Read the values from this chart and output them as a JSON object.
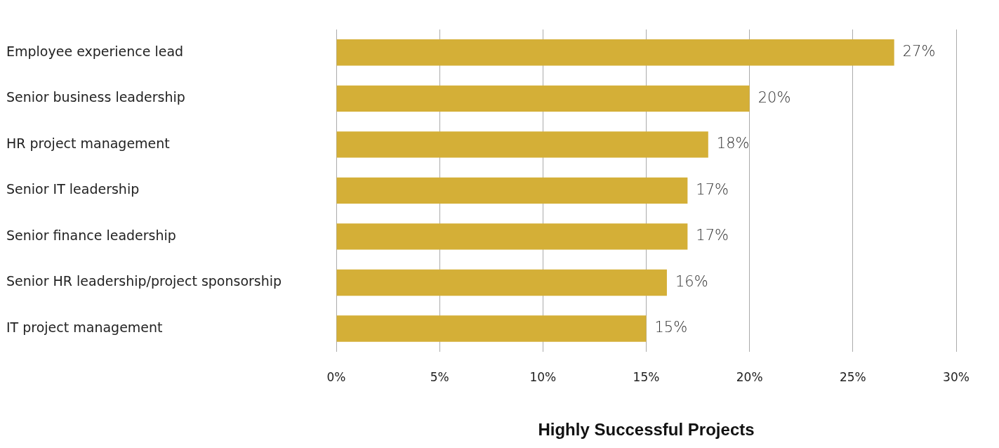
{
  "chart_data": {
    "type": "bar",
    "orientation": "horizontal",
    "xlabel": "Highly Successful Projects",
    "categories": [
      "Employee experience lead",
      "Senior business leadership",
      "HR project management",
      "Senior IT leadership",
      "Senior finance leadership",
      "Senior HR leadership/project sponsorship",
      "IT project management"
    ],
    "values": [
      27,
      20,
      18,
      17,
      17,
      16,
      15
    ],
    "value_labels": [
      "27%",
      "20%",
      "18%",
      "17%",
      "17%",
      "16%",
      "15%"
    ],
    "color": "#d4af37",
    "xlim": [
      0,
      30
    ],
    "xticks": [
      {
        "value": 0,
        "label": "0%"
      },
      {
        "value": 5,
        "label": "5%"
      },
      {
        "value": 10,
        "label": "10%"
      },
      {
        "value": 15,
        "label": "15%"
      },
      {
        "value": 20,
        "label": "20%"
      },
      {
        "value": 25,
        "label": "25%"
      },
      {
        "value": 30,
        "label": "30%"
      }
    ],
    "grid": "x",
    "legend": false
  }
}
